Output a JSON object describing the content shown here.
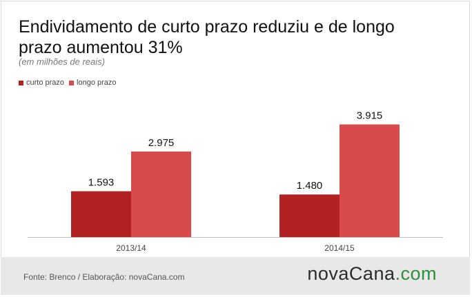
{
  "header": {
    "title": "Endividamento de curto prazo reduziu e de longo prazo aumentou 31%",
    "subtitle": "(em milhões de reais)"
  },
  "chart_data": {
    "type": "bar",
    "categories": [
      "2013/14",
      "2014/15"
    ],
    "series": [
      {
        "name": "curto prazo",
        "values": [
          1593,
          1480
        ],
        "labels": [
          "1.593",
          "1.480"
        ],
        "color": "#b22222"
      },
      {
        "name": "longo prazo",
        "values": [
          2975,
          3915
        ],
        "labels": [
          "2.975",
          "3.915"
        ],
        "color": "#d94b4b"
      }
    ],
    "ylim": [
      0,
      4600
    ],
    "grid": false,
    "legend_position": "top-left",
    "title": "Endividamento de curto prazo reduziu e de longo prazo aumentou 31%",
    "subtitle": "(em milhões de reais)"
  },
  "footer": {
    "source": "Fonte: Brenco / Elaboração: novaCana.com",
    "brand_part1": "novaCana",
    "brand_part2": ".com"
  },
  "colors": {
    "curto": "#b22222",
    "longo": "#d94b4b",
    "footer_bg": "#e8e8e8",
    "brand_green": "#2f8f3e"
  }
}
